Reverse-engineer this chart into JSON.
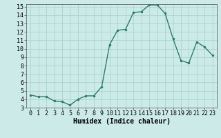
{
  "x": [
    0,
    1,
    2,
    3,
    4,
    5,
    6,
    7,
    8,
    9,
    10,
    11,
    12,
    13,
    14,
    15,
    16,
    17,
    18,
    19,
    20,
    21,
    22,
    23
  ],
  "y": [
    4.5,
    4.3,
    4.3,
    3.8,
    3.7,
    3.3,
    4.0,
    4.4,
    4.4,
    5.5,
    10.5,
    12.2,
    12.3,
    14.3,
    14.4,
    15.2,
    15.2,
    14.2,
    11.2,
    8.6,
    8.3,
    10.8,
    10.2,
    9.2
  ],
  "xlabel": "Humidex (Indice chaleur)",
  "ylabel": "",
  "ylim_min": 3,
  "ylim_max": 15,
  "xlim_min": 0,
  "xlim_max": 23,
  "line_color": "#2e7b6e",
  "bg_color": "#cceae8",
  "grid_color": "#aad4d0",
  "label_fontsize": 7,
  "tick_fontsize": 6
}
